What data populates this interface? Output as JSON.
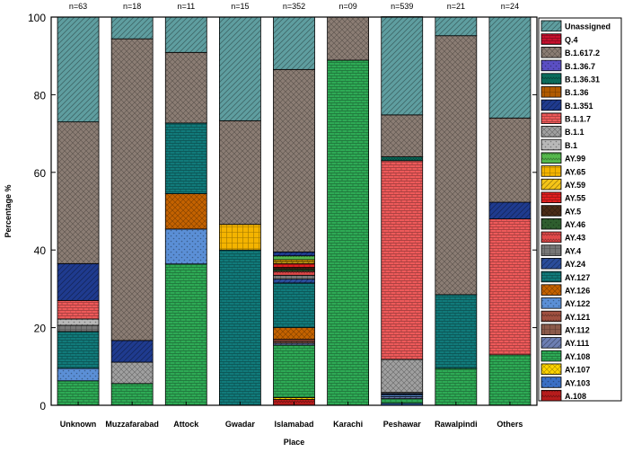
{
  "chart_data": {
    "type": "stacked-bar",
    "xlabel": "Place",
    "ylabel": "Percentage %",
    "ylim": [
      0,
      100
    ],
    "yticks": [
      0,
      20,
      40,
      60,
      80,
      100
    ],
    "legend_position": "right",
    "categories": [
      "Unknown",
      "Muzzafarabad",
      "Attock",
      "Gwadar",
      "Islamabad",
      "Karachi",
      "Peshawar",
      "Rawalpindi",
      "Others"
    ],
    "sample_sizes": [
      "n=63",
      "n=18",
      "n=11",
      "n=15",
      "n=352",
      "n=09",
      "n=539",
      "n=21",
      "n=24"
    ],
    "legend_order": [
      "Unassigned",
      "Q.4",
      "B.1.617.2",
      "B.1.36.7",
      "B.1.36.31",
      "B.1.36",
      "B.1.351",
      "B.1.1.7",
      "B.1.1",
      "B.1",
      "AY.99",
      "AY.65",
      "AY.59",
      "AY.55",
      "AY.5",
      "AY.46",
      "AY.43",
      "AY.4",
      "AY.24",
      "AY.127",
      "AY.126",
      "AY.122",
      "AY.121",
      "AY.112",
      "AY.111",
      "AY.108",
      "AY.107",
      "AY.103",
      "A.108"
    ],
    "colors": {
      "Unassigned": "#5f9ea0",
      "Q.4": "#c8102e",
      "B.1.617.2": "#8b7d74",
      "B.1.36.7": "#5b4fc4",
      "B.1.36.31": "#0b6b5b",
      "B.1.36": "#b05a00",
      "B.1.351": "#1f3b8f",
      "B.1.1.7": "#ee5a5a",
      "B.1.1": "#a0a0a0",
      "B.1": "#b8b8b8",
      "AY.99": "#55b84d",
      "AY.65": "#f4b400",
      "AY.59": "#f5c518",
      "AY.55": "#e32020",
      "AY.5": "#4a2c17",
      "AY.46": "#2e5e2e",
      "AY.43": "#e04a4a",
      "AY.4": "#777777",
      "AY.24": "#2a4d9b",
      "AY.127": "#117a7a",
      "AY.126": "#c46200",
      "AY.122": "#5b8fd6",
      "AY.121": "#a05040",
      "AY.112": "#8b5a4a",
      "AY.111": "#6d7fb3",
      "AY.108": "#2eaa55",
      "AY.107": "#ffd400",
      "AY.103": "#3a6fc4",
      "A.108": "#b71c1c"
    },
    "series": [
      {
        "name": "A.108",
        "values": [
          0,
          0,
          0,
          0,
          1.5,
          0,
          0,
          0,
          0
        ]
      },
      {
        "name": "AY.103",
        "values": [
          0,
          0,
          0,
          0,
          0,
          0,
          0.5,
          0,
          0
        ]
      },
      {
        "name": "AY.107",
        "values": [
          0,
          0,
          0,
          0,
          0.5,
          0,
          0,
          0,
          0
        ]
      },
      {
        "name": "AY.108",
        "values": [
          6.3,
          5.6,
          36.4,
          0,
          13.5,
          88.9,
          1.2,
          9.5,
          13
        ]
      },
      {
        "name": "AY.111",
        "values": [
          0,
          0,
          0,
          0,
          0.5,
          0,
          0.5,
          0,
          0
        ]
      },
      {
        "name": "AY.112",
        "values": [
          0,
          0,
          0,
          0,
          0.5,
          0,
          0,
          0,
          0
        ]
      },
      {
        "name": "AY.121",
        "values": [
          0,
          0,
          0,
          0,
          0.5,
          0,
          0,
          0,
          0
        ]
      },
      {
        "name": "AY.122",
        "values": [
          3.2,
          0,
          9,
          0,
          0,
          0,
          0.5,
          0,
          0
        ]
      },
      {
        "name": "AY.126",
        "values": [
          0,
          0,
          9.1,
          0,
          3,
          0,
          0,
          0,
          0
        ]
      },
      {
        "name": "AY.127",
        "values": [
          9.5,
          0,
          18.2,
          40,
          11.5,
          0,
          0,
          19,
          0
        ]
      },
      {
        "name": "AY.24",
        "values": [
          0,
          0,
          0,
          0,
          1,
          0,
          0.3,
          0,
          0
        ]
      },
      {
        "name": "AY.4",
        "values": [
          1.6,
          0,
          0,
          0,
          1,
          0,
          0.3,
          0,
          0
        ]
      },
      {
        "name": "AY.43",
        "values": [
          0,
          0,
          0,
          0,
          1,
          0,
          0,
          0,
          0
        ]
      },
      {
        "name": "AY.46",
        "values": [
          0,
          0,
          0,
          0,
          0.5,
          0,
          0,
          0,
          0
        ]
      },
      {
        "name": "AY.5",
        "values": [
          0,
          0,
          0,
          0,
          0.5,
          0,
          0,
          0,
          0
        ]
      },
      {
        "name": "AY.55",
        "values": [
          0,
          0,
          0,
          0,
          1,
          0,
          0,
          0,
          0
        ]
      },
      {
        "name": "AY.59",
        "values": [
          0,
          0,
          0,
          0,
          0.5,
          0,
          0,
          0,
          0
        ]
      },
      {
        "name": "AY.65",
        "values": [
          0,
          0,
          0,
          6.6,
          0.5,
          0,
          0,
          0,
          0
        ]
      },
      {
        "name": "AY.99",
        "values": [
          0,
          0,
          0,
          0,
          1,
          0,
          0,
          0,
          0
        ]
      },
      {
        "name": "B.1",
        "values": [
          1.6,
          0,
          0,
          0,
          0,
          0,
          0,
          0,
          0
        ]
      },
      {
        "name": "B.1.1",
        "values": [
          0,
          5.5,
          0,
          0,
          0,
          0,
          8.5,
          0,
          0
        ]
      },
      {
        "name": "B.1.1.7",
        "values": [
          4.8,
          0,
          0,
          0,
          0,
          0,
          51.2,
          0,
          35
        ]
      },
      {
        "name": "B.1.351",
        "values": [
          9.5,
          5.6,
          0,
          0,
          1,
          0,
          0,
          0,
          4.3
        ]
      },
      {
        "name": "B.1.36",
        "values": [
          0,
          0,
          0,
          0,
          0,
          0,
          0,
          0,
          0
        ]
      },
      {
        "name": "B.1.36.31",
        "values": [
          0,
          0,
          0,
          0,
          0,
          0,
          1,
          0,
          0
        ]
      },
      {
        "name": "B.1.36.7",
        "values": [
          0,
          0,
          0,
          0,
          0,
          0,
          0,
          0,
          0
        ]
      },
      {
        "name": "B.1.617.2",
        "values": [
          36.5,
          77.7,
          18.2,
          26.7,
          47,
          11.1,
          10.8,
          66.7,
          21.7
        ]
      },
      {
        "name": "Q.4",
        "values": [
          0,
          0,
          0,
          0,
          0,
          0,
          0,
          0,
          0
        ]
      },
      {
        "name": "Unassigned",
        "values": [
          27,
          5.6,
          9.1,
          26.7,
          13.5,
          0,
          25.3,
          4.8,
          26
        ]
      }
    ]
  }
}
